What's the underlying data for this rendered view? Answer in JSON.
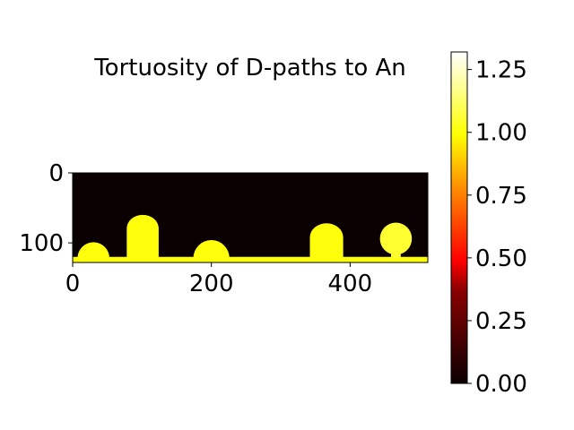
{
  "chart_data": {
    "type": "heatmap",
    "title": "Tortuosity of D-paths to An",
    "xlabel": "",
    "ylabel": "",
    "image_width": 512,
    "image_height": 128,
    "xlim": [
      0,
      512
    ],
    "ylim": [
      128,
      0
    ],
    "x_ticks": [
      {
        "value": 0,
        "label": "0"
      },
      {
        "value": 200,
        "label": "200"
      },
      {
        "value": 400,
        "label": "400"
      }
    ],
    "y_ticks": [
      {
        "value": 0,
        "label": "0"
      },
      {
        "value": 100,
        "label": "100"
      }
    ],
    "colormap": "hot",
    "background_value": 0.0,
    "regions": [
      {
        "shape": "rect",
        "x0": 0,
        "x1": 512,
        "y0": 120,
        "y1": 128,
        "value": 1.0
      },
      {
        "shape": "dome",
        "cx": 30,
        "radius": 23,
        "base": 122,
        "value": 1.0
      },
      {
        "shape": "stalk",
        "x0": 78,
        "x1": 124,
        "top": 60,
        "base": 122,
        "value": 1.0
      },
      {
        "shape": "dome",
        "cx": 200,
        "radius": 26,
        "base": 122,
        "value": 1.0
      },
      {
        "shape": "stalk",
        "x0": 342,
        "x1": 390,
        "top": 72,
        "base": 122,
        "value": 1.0
      },
      {
        "shape": "cap",
        "cx": 466,
        "cy": 94,
        "radius": 23,
        "stem_x0": 459,
        "stem_x1": 473,
        "base": 122,
        "value": 1.05
      }
    ],
    "colorbar": {
      "min": 0.0,
      "max": 1.32,
      "ticks": [
        {
          "value": 0.0,
          "label": "0.00"
        },
        {
          "value": 0.25,
          "label": "0.25"
        },
        {
          "value": 0.5,
          "label": "0.50"
        },
        {
          "value": 0.75,
          "label": "0.75"
        },
        {
          "value": 1.0,
          "label": "1.00"
        },
        {
          "value": 1.25,
          "label": "1.25"
        }
      ]
    },
    "legend": "none",
    "grid": false
  }
}
